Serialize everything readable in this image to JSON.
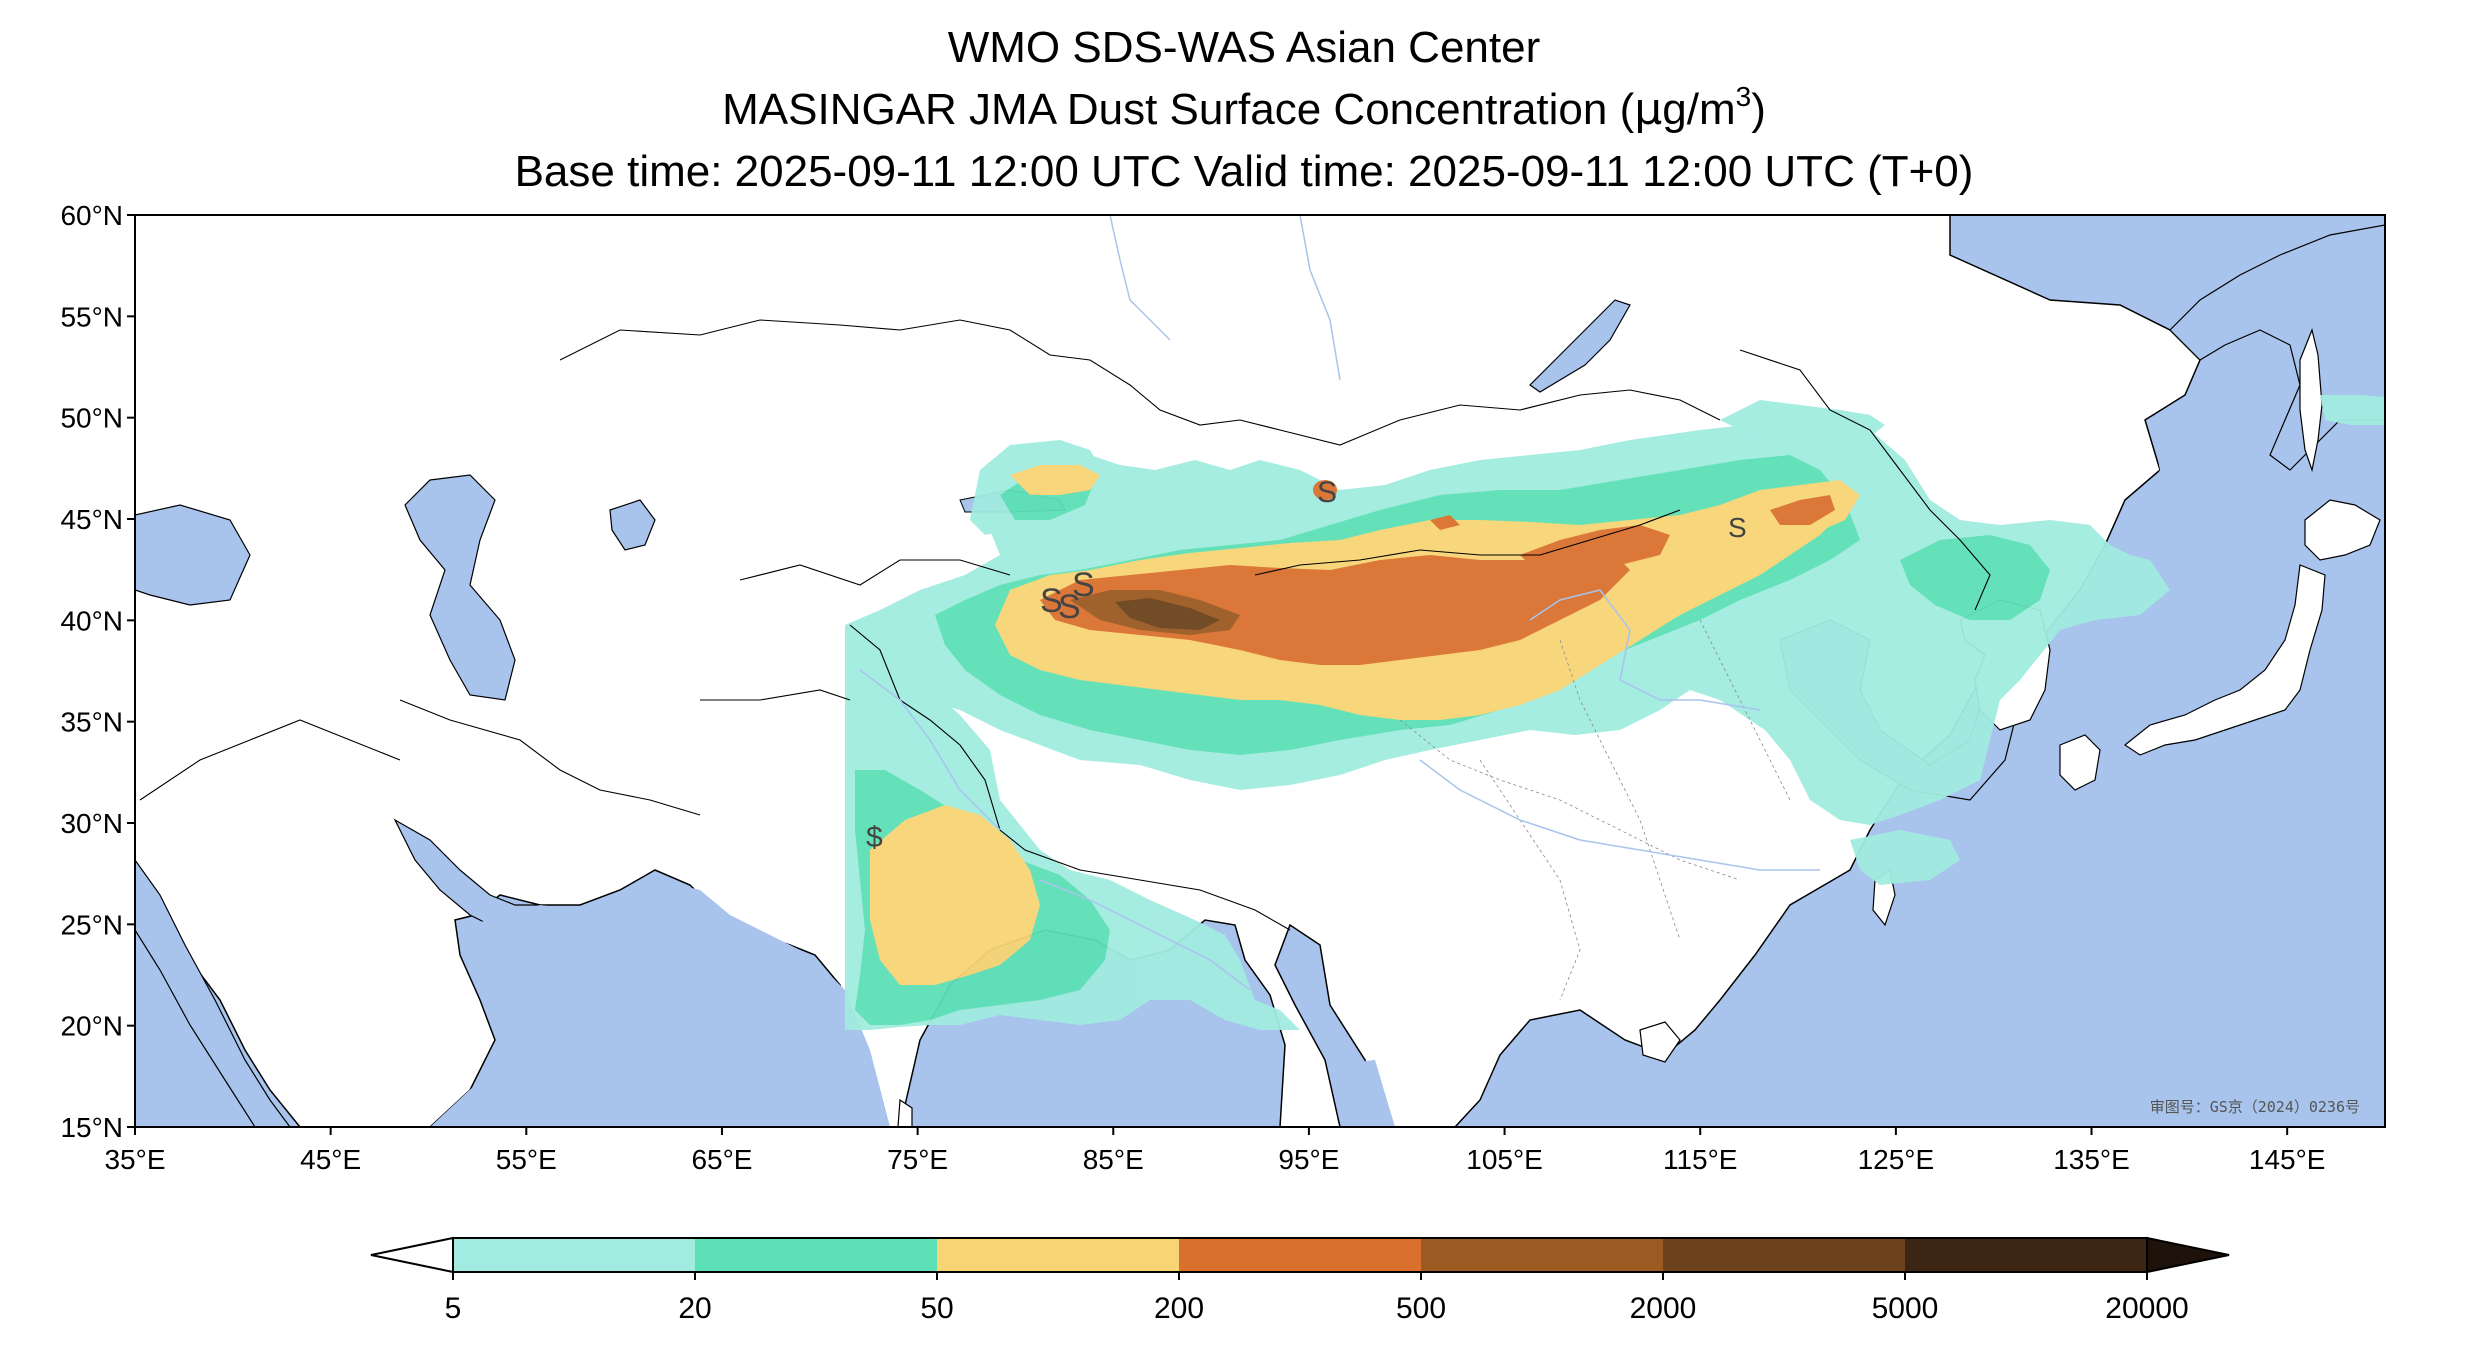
{
  "title": {
    "line1": "WMO SDS-WAS Asian Center",
    "line2_prefix": "MASINGAR JMA Dust Surface Concentration (",
    "line2_mu": "μ",
    "line2_unit": "g/m",
    "line2_exp": "3",
    "line2_suffix": ")",
    "line3": "Base time: 2025-09-11 12:00 UTC Valid time: 2025-09-11 12:00 UTC (T+0)"
  },
  "map": {
    "lon_range": [
      35,
      150
    ],
    "lat_range": [
      15,
      60
    ],
    "lat_ticks": [
      "60°N",
      "55°N",
      "50°N",
      "45°N",
      "40°N",
      "35°N",
      "30°N",
      "25°N",
      "20°N",
      "15°N"
    ],
    "lon_ticks": [
      "35°E",
      "45°E",
      "55°E",
      "65°E",
      "75°E",
      "85°E",
      "95°E",
      "105°E",
      "115°E",
      "125°E",
      "135°E",
      "145°E"
    ],
    "ocean_color": "#a8c4ec",
    "land_color": "#ffffff",
    "approval_note": "审图号：GS京（2024）0236号"
  },
  "colorbar": {
    "labels": [
      "5",
      "20",
      "50",
      "200",
      "500",
      "2000",
      "5000",
      "20000"
    ],
    "colors": [
      "#a1ebe0",
      "#5de0b6",
      "#f8d474",
      "#da702e",
      "#9b5a22",
      "#6b421c",
      "#3c2512"
    ],
    "under_color": "#ffffff",
    "over_color": "#1e120a"
  }
}
